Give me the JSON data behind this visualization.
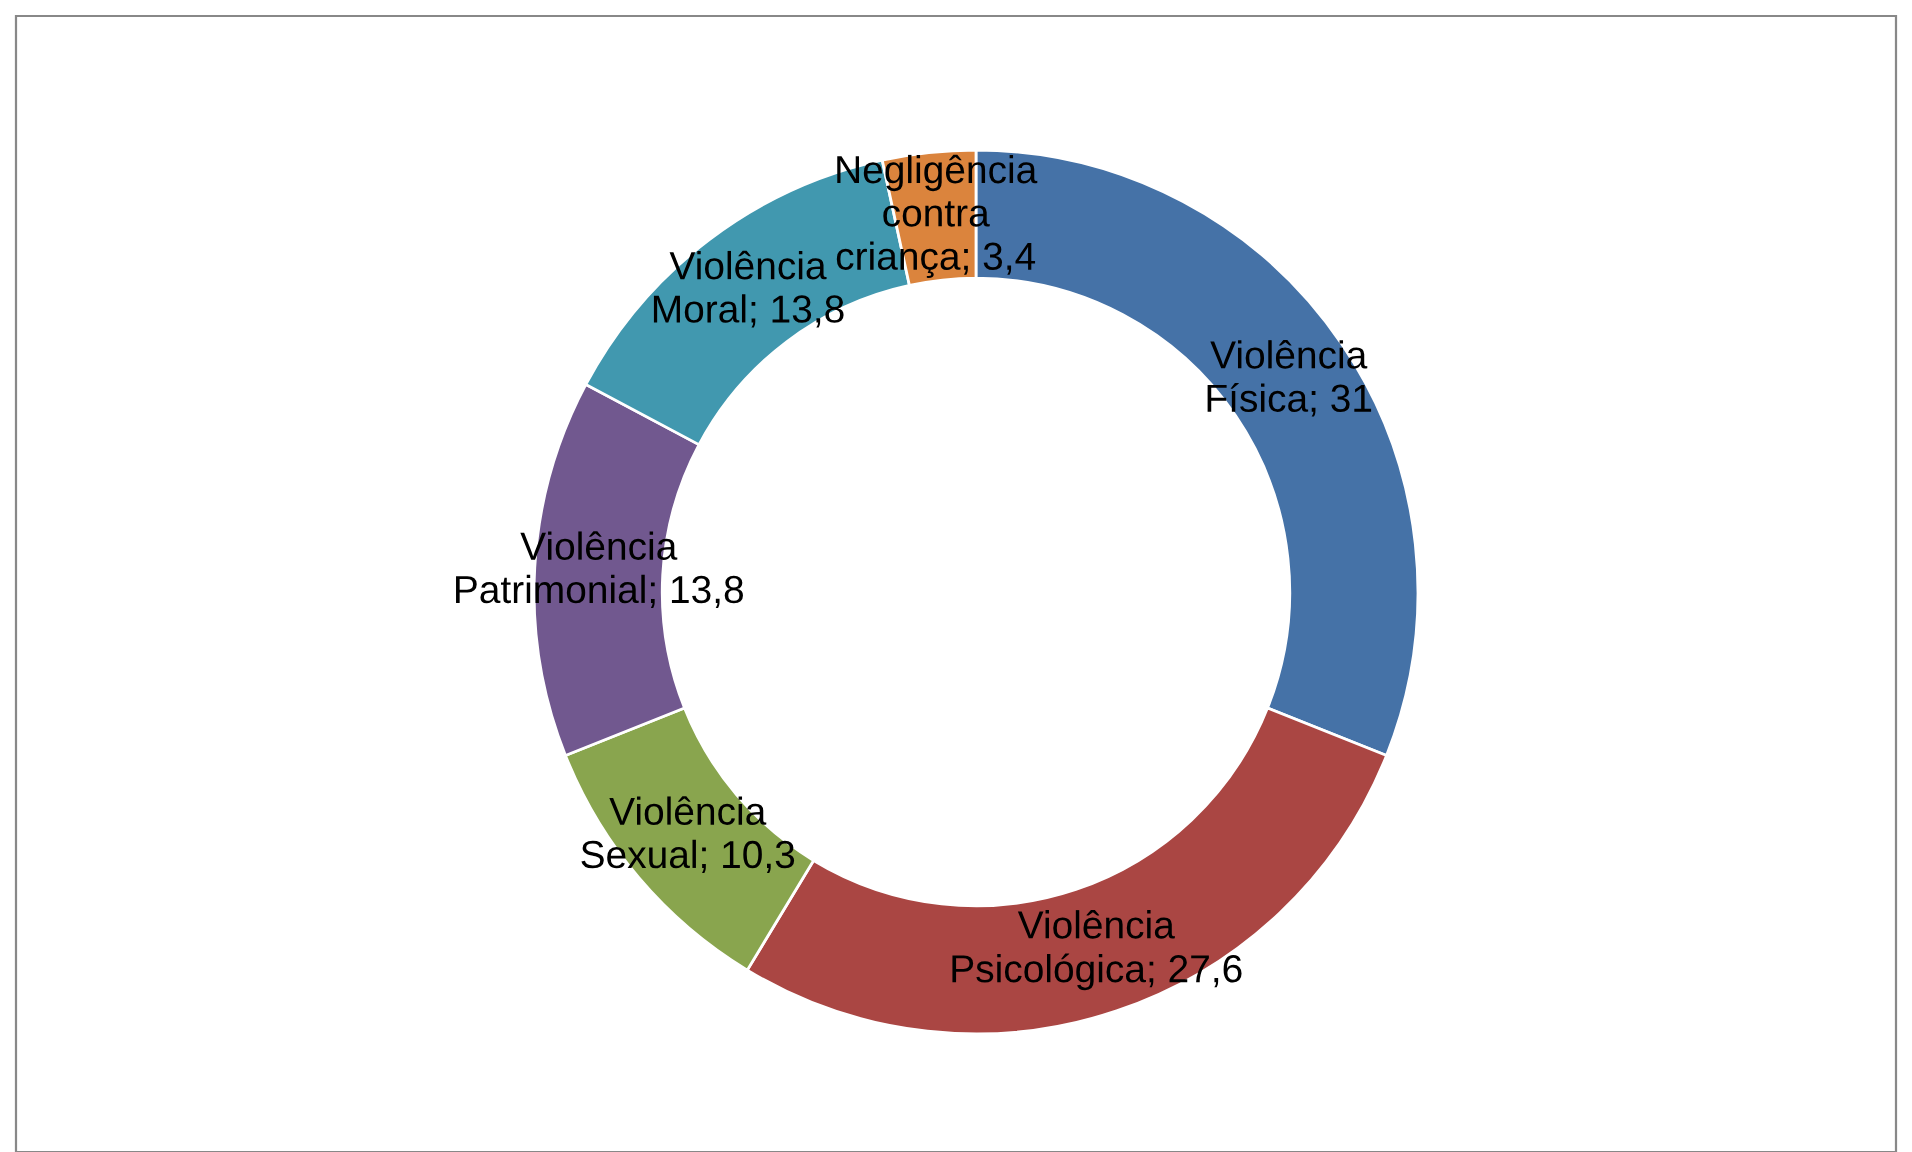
{
  "chart_data": {
    "type": "donut",
    "categories": [
      "Violência Física",
      "Violência Psicológica",
      "Violência Sexual",
      "Violência Patrimonial",
      "Violência Moral",
      "Negligência contra criança"
    ],
    "values": [
      31,
      27.6,
      10.3,
      13.8,
      13.8,
      3.4
    ],
    "value_labels": [
      "31",
      "27,6",
      "10,3",
      "13,8",
      "13,8",
      "3,4"
    ],
    "colors": [
      "#4572a7",
      "#aa4643",
      "#89a54e",
      "#71588f",
      "#4198af",
      "#db843d"
    ],
    "legend": false
  }
}
